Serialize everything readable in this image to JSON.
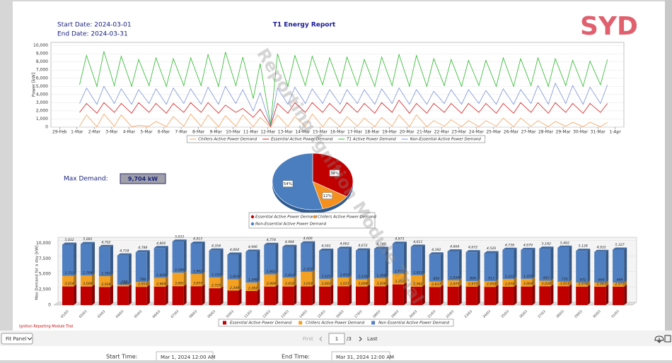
{
  "header": {
    "start_date": "Start Date: 2024-03-01",
    "end_date": "End Date:  2024-03-31",
    "title": "T1 Energy Report",
    "logo": "SYD"
  },
  "max_demand": {
    "label": "Max Demand:",
    "value": "9,704 kW"
  },
  "trial_note": "Ignition Reporting Module Trial",
  "watermark": "Reporting Ignition Module Trial",
  "toolbar": {
    "zoom": "Fit Panel",
    "first": "First",
    "page": "1",
    "page_count": "/3",
    "last": "Last"
  },
  "filters": {
    "start_label": "Start Time:",
    "start_value": "Mar 1, 2024 12:00 AM",
    "end_label": "End Time:",
    "end_value": "Mar 31, 2024 12:00 AM"
  },
  "chart_data": [
    {
      "type": "line",
      "y_label": "Power [kW]",
      "xlim": [
        -0.5,
        32.5
      ],
      "ylim": [
        0,
        10400
      ],
      "xticks": [
        {
          "value": 0,
          "label": "29-Feb"
        },
        {
          "value": 1,
          "label": "1-Mar"
        },
        {
          "value": 2,
          "label": "2-Mar"
        },
        {
          "value": 3,
          "label": "3-Mar"
        },
        {
          "value": 4,
          "label": "4-Mar"
        },
        {
          "value": 5,
          "label": "5-Mar"
        },
        {
          "value": 6,
          "label": "6-Mar"
        },
        {
          "value": 7,
          "label": "7-Mar"
        },
        {
          "value": 8,
          "label": "8-Mar"
        },
        {
          "value": 9,
          "label": "9-Mar"
        },
        {
          "value": 10,
          "label": "10-Mar"
        },
        {
          "value": 11,
          "label": "11-Mar"
        },
        {
          "value": 12,
          "label": "12-Mar"
        },
        {
          "value": 13,
          "label": "13-Mar"
        },
        {
          "value": 14,
          "label": "14-Mar"
        },
        {
          "value": 15,
          "label": "15-Mar"
        },
        {
          "value": 16,
          "label": "16-Mar"
        },
        {
          "value": 17,
          "label": "17-Mar"
        },
        {
          "value": 18,
          "label": "18-Mar"
        },
        {
          "value": 19,
          "label": "19-Mar"
        },
        {
          "value": 20,
          "label": "20-Mar"
        },
        {
          "value": 21,
          "label": "21-Mar"
        },
        {
          "value": 22,
          "label": "22-Mar"
        },
        {
          "value": 23,
          "label": "23-Mar"
        },
        {
          "value": 24,
          "label": "24-Mar"
        },
        {
          "value": 25,
          "label": "25-Mar"
        },
        {
          "value": 26,
          "label": "26-Mar"
        },
        {
          "value": 27,
          "label": "27-Mar"
        },
        {
          "value": 28,
          "label": "28-Mar"
        },
        {
          "value": 29,
          "label": "29-Mar"
        },
        {
          "value": 30,
          "label": "30-Mar"
        },
        {
          "value": 31,
          "label": "31-Mar"
        },
        {
          "value": 32,
          "label": "1-Apr"
        }
      ],
      "yticks": [
        0,
        {
          "value": 1000,
          "label": "1,000"
        },
        {
          "value": 2000,
          "label": "2,000"
        },
        {
          "value": 3000,
          "label": "3,000"
        },
        {
          "value": 4000,
          "label": "4,000"
        },
        {
          "value": 5000,
          "label": "5,000"
        },
        {
          "value": 6000,
          "label": "6,000"
        },
        {
          "value": 7000,
          "label": "7,000"
        },
        {
          "value": 8000,
          "label": "8,000"
        },
        {
          "value": 9000,
          "label": "9,000"
        },
        {
          "value": 10000,
          "label": "10,000"
        }
      ],
      "grid": true,
      "x": [
        1.15,
        1.55,
        2.15,
        2.55,
        3.15,
        3.55,
        4.15,
        4.55,
        5.15,
        5.55,
        6.15,
        6.55,
        7.15,
        7.55,
        8.15,
        8.55,
        9.15,
        9.55,
        10.15,
        10.55,
        11.15,
        11.55,
        12.15,
        12.55,
        13.15,
        13.55,
        14.15,
        14.55,
        15.15,
        15.55,
        16.15,
        16.55,
        17.15,
        17.55,
        18.15,
        18.55,
        19.15,
        19.55,
        20.15,
        20.55,
        21.15,
        21.55,
        22.15,
        22.55,
        23.15,
        23.55,
        24.15,
        24.55,
        25.15,
        25.55,
        26.15,
        26.55,
        27.15,
        27.55,
        28.15,
        28.55,
        29.15,
        29.55,
        30.15,
        30.55,
        31.15,
        31.55
      ],
      "series": [
        {
          "name": "Chillers Active Power Demand",
          "color": "#f4a05a",
          "values": [
            100,
            1500,
            50,
            1600,
            100,
            1500,
            50,
            200,
            100,
            700,
            50,
            1300,
            100,
            1600,
            100,
            1500,
            50,
            1400,
            100,
            1500,
            50,
            1200,
            0,
            1500,
            50,
            1300,
            100,
            1600,
            50,
            1200,
            50,
            1300,
            100,
            1100,
            50,
            1200,
            100,
            1500,
            50,
            1500,
            50,
            800,
            100,
            900,
            50,
            800,
            50,
            800,
            100,
            1100,
            50,
            1100,
            100,
            800,
            50,
            700,
            100,
            600,
            50,
            600,
            50,
            600
          ]
        },
        {
          "name": "Essential Active Power Demand",
          "color": "#d42020",
          "values": [
            1800,
            2900,
            1700,
            3000,
            1800,
            2900,
            1700,
            3000,
            1800,
            2900,
            1700,
            2900,
            1800,
            3000,
            1800,
            3000,
            1700,
            2700,
            1800,
            2300,
            1200,
            2200,
            100,
            2900,
            1700,
            3000,
            1800,
            3000,
            1800,
            2900,
            1700,
            3000,
            1800,
            2900,
            1700,
            3000,
            1800,
            3300,
            1700,
            2900,
            1700,
            2900,
            1800,
            2900,
            1700,
            2900,
            1800,
            2900,
            1700,
            2900,
            1700,
            3000,
            1800,
            3000,
            1700,
            3000,
            1800,
            2900,
            1700,
            2900,
            1800,
            2900
          ]
        },
        {
          "name": "T1 Active Power Demand",
          "color": "#2db82d",
          "values": [
            5200,
            8800,
            5000,
            9300,
            5100,
            8700,
            5000,
            8300,
            5100,
            8500,
            5000,
            8400,
            5100,
            8500,
            5100,
            8900,
            5000,
            9200,
            5100,
            8600,
            3500,
            7800,
            300,
            9000,
            5000,
            8800,
            5100,
            8700,
            5200,
            8500,
            5000,
            8600,
            5100,
            8300,
            5000,
            8600,
            5100,
            8900,
            5000,
            8800,
            5000,
            8400,
            5100,
            8300,
            5000,
            8200,
            5100,
            8200,
            5000,
            8500,
            5000,
            8400,
            5100,
            8500,
            5000,
            8400,
            5100,
            8200,
            5000,
            8100,
            5200,
            8300
          ]
        },
        {
          "name": "Non-Essential Active Power Demand",
          "color": "#7b93d8",
          "values": [
            2900,
            4800,
            2800,
            5000,
            2900,
            4700,
            2800,
            4600,
            2900,
            4700,
            2800,
            4800,
            2900,
            4700,
            2800,
            4900,
            2800,
            5000,
            2900,
            4600,
            2000,
            4200,
            200,
            4800,
            2800,
            4900,
            2900,
            4700,
            2900,
            4600,
            2800,
            4600,
            2900,
            4600,
            2800,
            4700,
            2900,
            4800,
            2800,
            4600,
            2800,
            4400,
            2900,
            4600,
            2800,
            4600,
            2900,
            4500,
            2800,
            4700,
            2800,
            4600,
            2900,
            5100,
            2800,
            5400,
            2900,
            5100,
            2800,
            4900,
            2900,
            5200
          ]
        }
      ]
    },
    {
      "type": "pie",
      "categories": [
        "Essential Active Power Demand",
        "Chillers Active Power Demand",
        "Non-Essential Active Power Demand"
      ],
      "values": [
        34,
        12,
        54
      ],
      "value_labels": [
        "34%",
        "12%",
        "54%"
      ],
      "colors": [
        "#c00000",
        "#f4901e",
        "#4a7ebf"
      ]
    },
    {
      "type": "stacked_bar",
      "y_label": "Max Demand for a day [kW]",
      "ylim": [
        0,
        10500
      ],
      "yticks": [
        0,
        {
          "value": 2500,
          "label": "2,500"
        },
        {
          "value": 5000,
          "label": "5,000"
        },
        {
          "value": 7500,
          "label": "7,500"
        },
        {
          "value": 10000,
          "label": "10,000"
        }
      ],
      "grid": true,
      "categories": [
        "01/03",
        "02/03",
        "03/03",
        "04/03",
        "05/03",
        "06/03",
        "07/03",
        "08/03",
        "09/03",
        "10/03",
        "11/03",
        "12/03",
        "13/03",
        "14/03",
        "15/03",
        "16/03",
        "17/03",
        "18/03",
        "19/03",
        "20/03",
        "21/03",
        "22/03",
        "23/03",
        "24/03",
        "25/03",
        "26/03",
        "27/03",
        "28/03",
        "29/03",
        "30/03",
        "31/03"
      ],
      "series": [
        {
          "name": "Essential Active Power Demand",
          "color": "#c00000",
          "values": [
            3014,
            3008,
            2938,
            3041,
            2953,
            2969,
            3061,
            3055,
            2725,
            2344,
            2282,
            2999,
            3010,
            3018,
            3003,
            3031,
            3009,
            3038,
            3351,
            2982,
            2937,
            2975,
            2971,
            2950,
            2979,
            3004,
            3026,
            3051,
            2974,
            2981,
            2971
          ],
          "value_labels": [
            "3,014",
            "3,008",
            "2,938",
            "3,041",
            "2,953",
            "2,969",
            "3,061",
            "3,055",
            "2,725",
            "2,344",
            "2,282",
            "2,999",
            "3,010",
            "3,018",
            "3,003",
            "3,031",
            "3,009",
            "3,038",
            "3,351",
            "2,982",
            "2,937",
            "2,975",
            "2,971",
            "2,950",
            "2,979",
            "3,004",
            "3,026",
            "3,051",
            "2,974",
            "2,981",
            "2,971"
          ]
        },
        {
          "name": "Chillers Active Power Demand",
          "color": "#f4a020",
          "values": [
            1711,
            1764,
            1741,
            258,
            784,
            1439,
            2166,
            1962,
            1737,
            1819,
            1349,
            1961,
            1412,
            2352,
            1221,
            1410,
            1150,
            1308,
            1695,
            1832,
            859,
            1034,
            896,
            913,
            1211,
            1229,
            915,
            730,
            672,
            669,
            664
          ],
          "value_labels": [
            "1,711",
            "1,764",
            "1,741",
            "258",
            "784",
            "1,439",
            "2,166",
            "1,962",
            "1,737",
            "1,819",
            "1,349",
            "1,961",
            "1,412",
            "2,352",
            "1,221",
            "1,410",
            "1,150",
            "1,308",
            "1,695",
            "1,832",
            "859",
            "1,034",
            "896",
            "913",
            "1,211",
            "1,229",
            "915",
            "730",
            "672",
            "669",
            "664"
          ]
        },
        {
          "name": "Non Essential Active Power Demand",
          "color": "#4f7fc0",
          "values": [
            5032,
            5091,
            4702,
            4718,
            4788,
            4806,
            5033,
            4915,
            4354,
            4004,
            4996,
            4774,
            4984,
            4606,
            4561,
            4662,
            4672,
            4745,
            4873,
            4611,
            4392,
            4668,
            4672,
            4526,
            4738,
            4679,
            5182,
            5492,
            5128,
            4932,
            5327
          ],
          "value_labels": [
            "5,032",
            "5,091",
            "4,702",
            "4,718",
            "4,788",
            "4,806",
            "5,033",
            "4,915",
            "4,354",
            "4,004",
            "4,996",
            "4,774",
            "4,984",
            "4,606",
            "4,561",
            "4,662",
            "4,672",
            "4,745",
            "4,873",
            "4,611",
            "4,392",
            "4,668",
            "4,672",
            "4,526",
            "4,738",
            "4,679",
            "5,182",
            "5,492",
            "5,128",
            "4,932",
            "5,327"
          ]
        }
      ]
    }
  ]
}
